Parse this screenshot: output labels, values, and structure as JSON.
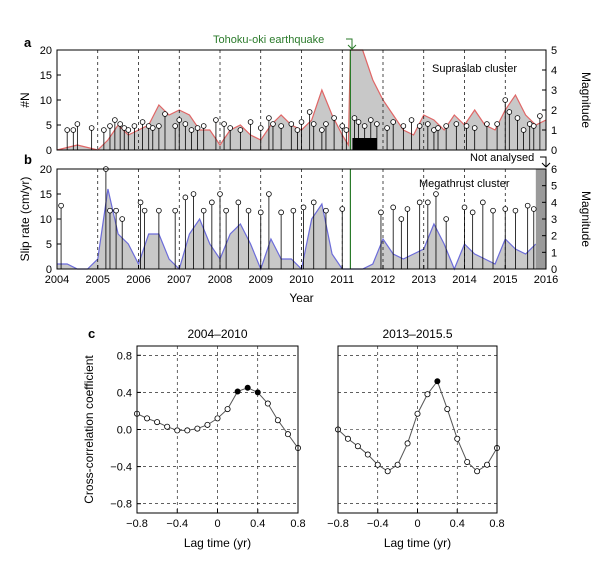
{
  "colors": {
    "supraslab_line": "#e06666",
    "megathrust_line": "#6c6cd9",
    "fill_gray": "#c8c8c8",
    "earthquake_line": "#2a7a2a",
    "earthquake_text": "#2a7a2a"
  },
  "panels": {
    "a": {
      "label": "a",
      "cluster_title": "Supraslab cluster"
    },
    "b": {
      "label": "b",
      "cluster_title": "Megathrust cluster"
    },
    "c": {
      "label": "c"
    }
  },
  "annotations": {
    "earthquake": "Tohoku-oki earthquake",
    "not_analysed": "Not analysed"
  },
  "chart_data": [
    {
      "id": "supraslab",
      "type": "area",
      "ylabel_left": "#N",
      "ylabel_right": "Magnitude",
      "xlabel": "",
      "xlim": [
        2004,
        2016
      ],
      "ylim": [
        0,
        20
      ],
      "y2lim": [
        0,
        5
      ],
      "yticks": [
        "0",
        "5",
        "10",
        "15",
        "20"
      ],
      "y2ticks": [
        "0",
        "1",
        "2",
        "3",
        "4",
        "5"
      ],
      "grid": "vertical dashed lines at each year",
      "earthquake_year": 2011.2,
      "count_x": [
        2004.0,
        2004.25,
        2004.5,
        2004.75,
        2005.0,
        2005.25,
        2005.5,
        2005.75,
        2006.0,
        2006.25,
        2006.5,
        2006.75,
        2007.0,
        2007.25,
        2007.5,
        2007.75,
        2008.0,
        2008.25,
        2008.5,
        2008.75,
        2009.0,
        2009.25,
        2009.5,
        2009.75,
        2010.0,
        2010.25,
        2010.5,
        2010.75,
        2011.0,
        2011.15,
        2011.2,
        2011.25,
        2011.5,
        2011.75,
        2012.0,
        2012.25,
        2012.5,
        2012.75,
        2013.0,
        2013.25,
        2013.5,
        2013.75,
        2014.0,
        2014.25,
        2014.5,
        2014.75,
        2015.0,
        2015.25,
        2015.5,
        2015.75,
        2016.0
      ],
      "count_y": [
        0,
        0.5,
        1,
        0.5,
        0,
        2,
        5,
        3,
        4,
        5,
        9,
        7,
        8,
        7,
        4,
        4,
        1,
        4,
        5,
        3,
        2,
        5,
        7,
        5,
        4,
        6,
        12,
        7,
        3,
        1,
        20,
        20,
        20,
        14,
        10,
        7,
        4,
        3,
        7,
        6,
        4,
        7,
        5,
        8,
        5,
        4,
        8,
        11,
        7,
        5,
        6
      ],
      "events": [
        [
          2004.25,
          1.0
        ],
        [
          2004.4,
          1.0
        ],
        [
          2004.5,
          1.3
        ],
        [
          2004.85,
          1.1
        ],
        [
          2005.15,
          1.0
        ],
        [
          2005.3,
          1.2
        ],
        [
          2005.42,
          1.5
        ],
        [
          2005.55,
          1.3
        ],
        [
          2005.65,
          1.1
        ],
        [
          2005.75,
          1.0
        ],
        [
          2005.9,
          1.2
        ],
        [
          2006.1,
          1.4
        ],
        [
          2006.25,
          1.2
        ],
        [
          2006.35,
          1.1
        ],
        [
          2006.5,
          1.2
        ],
        [
          2006.65,
          1.8
        ],
        [
          2006.9,
          1.2
        ],
        [
          2007.0,
          1.5
        ],
        [
          2007.15,
          1.3
        ],
        [
          2007.3,
          1.0
        ],
        [
          2007.45,
          1.1
        ],
        [
          2007.6,
          1.2
        ],
        [
          2007.9,
          1.5
        ],
        [
          2008.1,
          1.3
        ],
        [
          2008.25,
          1.1
        ],
        [
          2008.5,
          1.0
        ],
        [
          2008.75,
          1.4
        ],
        [
          2009.0,
          1.1
        ],
        [
          2009.2,
          1.6
        ],
        [
          2009.3,
          1.3
        ],
        [
          2009.5,
          1.2
        ],
        [
          2009.75,
          1.3
        ],
        [
          2009.9,
          1.0
        ],
        [
          2010.0,
          1.4
        ],
        [
          2010.2,
          1.9
        ],
        [
          2010.3,
          1.3
        ],
        [
          2010.5,
          1.0
        ],
        [
          2010.6,
          1.3
        ],
        [
          2010.8,
          1.6
        ],
        [
          2011.0,
          1.2
        ],
        [
          2011.1,
          1.0
        ],
        [
          2011.3,
          1.6
        ],
        [
          2011.4,
          1.4
        ],
        [
          2011.55,
          1.2
        ],
        [
          2011.7,
          1.5
        ],
        [
          2011.85,
          1.3
        ],
        [
          2012.1,
          1.1
        ],
        [
          2012.25,
          1.4
        ],
        [
          2012.5,
          1.2
        ],
        [
          2012.7,
          1.5
        ],
        [
          2012.9,
          1.2
        ],
        [
          2013.1,
          1.3
        ],
        [
          2013.25,
          1.0
        ],
        [
          2013.35,
          1.1
        ],
        [
          2013.55,
          1.2
        ],
        [
          2013.8,
          1.3
        ],
        [
          2014.05,
          1.2
        ],
        [
          2014.25,
          1.1
        ],
        [
          2014.55,
          1.3
        ],
        [
          2014.8,
          1.3
        ],
        [
          2015.0,
          2.5
        ],
        [
          2015.1,
          1.9
        ],
        [
          2015.3,
          1.6
        ],
        [
          2015.45,
          1.0
        ],
        [
          2015.6,
          1.3
        ],
        [
          2015.7,
          1.2
        ],
        [
          2015.85,
          1.7
        ]
      ]
    },
    {
      "id": "megathrust",
      "type": "area",
      "ylabel_left": "Slip rate (cm/yr)",
      "ylabel_right": "Magnitude",
      "xlabel": "Year",
      "xlim": [
        2004,
        2016
      ],
      "ylim": [
        0,
        20
      ],
      "y2lim": [
        0,
        6
      ],
      "yticks": [
        "0",
        "5",
        "10",
        "15",
        "20"
      ],
      "y2ticks": [
        "0",
        "1",
        "2",
        "3",
        "4",
        "5",
        "6"
      ],
      "xticks": [
        "2004",
        "2005",
        "2006",
        "2007",
        "2008",
        "2009",
        "2010",
        "2011",
        "2012",
        "2013",
        "2014",
        "2015",
        "2016"
      ],
      "not_analysed_range": [
        2015.75,
        2016
      ],
      "earthquake_year": 2011.2,
      "slip_x": [
        2004.0,
        2004.25,
        2004.5,
        2004.75,
        2005.0,
        2005.25,
        2005.5,
        2005.75,
        2006.0,
        2006.25,
        2006.5,
        2006.75,
        2007.0,
        2007.25,
        2007.5,
        2007.75,
        2008.0,
        2008.25,
        2008.5,
        2008.75,
        2009.0,
        2009.25,
        2009.5,
        2009.75,
        2010.0,
        2010.25,
        2010.5,
        2010.75,
        2011.0,
        2011.1,
        2011.2
      ],
      "slip_y": [
        1,
        1,
        0,
        0,
        2,
        16,
        7,
        5,
        1,
        7,
        7,
        2,
        0,
        7,
        10,
        5,
        2,
        7,
        9,
        5,
        0,
        6,
        2,
        2,
        0,
        10,
        13,
        3,
        0,
        0,
        0
      ],
      "slip_x2": [
        2011.2,
        2011.5,
        2011.75,
        2012.0,
        2012.25,
        2012.5,
        2012.75,
        2013.0,
        2013.25,
        2013.5,
        2013.75,
        2014.0,
        2014.25,
        2014.5,
        2014.75,
        2015.0,
        2015.25,
        2015.5,
        2015.75
      ],
      "slip_y2": [
        0,
        0,
        1,
        6,
        3,
        2,
        3,
        4,
        9,
        5,
        0,
        5,
        3,
        2,
        1,
        6,
        4,
        3,
        5
      ],
      "events": [
        [
          2004.1,
          3.8
        ],
        [
          2005.2,
          6.0
        ],
        [
          2005.3,
          3.5
        ],
        [
          2005.45,
          3.5
        ],
        [
          2005.6,
          3.0
        ],
        [
          2006.05,
          4.0
        ],
        [
          2006.15,
          3.5
        ],
        [
          2006.5,
          3.5
        ],
        [
          2006.9,
          3.5
        ],
        [
          2007.15,
          4.3
        ],
        [
          2007.35,
          4.5
        ],
        [
          2007.6,
          3.5
        ],
        [
          2007.8,
          4.0
        ],
        [
          2008.0,
          4.5
        ],
        [
          2008.15,
          3.5
        ],
        [
          2008.45,
          4.0
        ],
        [
          2008.7,
          3.5
        ],
        [
          2009.0,
          3.4
        ],
        [
          2009.2,
          4.5
        ],
        [
          2009.5,
          3.4
        ],
        [
          2009.8,
          3.5
        ],
        [
          2010.05,
          3.7
        ],
        [
          2010.3,
          4.0
        ],
        [
          2010.6,
          3.5
        ],
        [
          2011.0,
          3.6
        ],
        [
          2011.95,
          3.4
        ],
        [
          2012.25,
          3.7
        ],
        [
          2012.45,
          3.0
        ],
        [
          2012.6,
          3.6
        ],
        [
          2012.9,
          4.0
        ],
        [
          2013.1,
          4.0
        ],
        [
          2013.3,
          4.5
        ],
        [
          2013.55,
          3.0
        ],
        [
          2014.0,
          3.7
        ],
        [
          2014.2,
          3.4
        ],
        [
          2014.45,
          4.0
        ],
        [
          2014.7,
          3.5
        ],
        [
          2015.0,
          3.6
        ],
        [
          2015.25,
          3.5
        ],
        [
          2015.55,
          3.8
        ],
        [
          2015.7,
          3.6
        ]
      ]
    },
    {
      "id": "xcorr-2004-2010",
      "type": "line",
      "title": "2004–2010",
      "xlabel": "Lag time (yr)",
      "ylabel": "Cross-correlation coefficient",
      "xlim": [
        -0.8,
        0.8
      ],
      "ylim": [
        -0.9,
        0.9
      ],
      "xticks": [
        "−0.8",
        "−0.4",
        "0",
        "0.4",
        "0.8"
      ],
      "yticks": [
        "0.8",
        "0.4",
        "0.0",
        "−0.4",
        "−0.8"
      ],
      "grid": true,
      "x": [
        -0.8,
        -0.7,
        -0.6,
        -0.5,
        -0.4,
        -0.3,
        -0.2,
        -0.1,
        0.0,
        0.1,
        0.2,
        0.3,
        0.4,
        0.5,
        0.6,
        0.7,
        0.8
      ],
      "y": [
        0.17,
        0.12,
        0.08,
        0.03,
        -0.01,
        -0.01,
        0.01,
        0.05,
        0.12,
        0.22,
        0.41,
        0.45,
        0.4,
        0.28,
        0.1,
        -0.05,
        -0.2
      ],
      "highlighted": [
        10,
        11,
        12
      ]
    },
    {
      "id": "xcorr-2013-2015",
      "type": "line",
      "title": "2013–2015.5",
      "xlabel": "Lag time (yr)",
      "ylabel": "",
      "xlim": [
        -0.8,
        0.8
      ],
      "ylim": [
        -0.9,
        0.9
      ],
      "xticks": [
        "−0.8",
        "−0.4",
        "0",
        "0.4",
        "0.8"
      ],
      "grid": true,
      "x": [
        -0.8,
        -0.7,
        -0.6,
        -0.5,
        -0.4,
        -0.3,
        -0.2,
        -0.1,
        0.0,
        0.1,
        0.2,
        0.3,
        0.4,
        0.5,
        0.6,
        0.7,
        0.8
      ],
      "y": [
        0.0,
        -0.1,
        -0.18,
        -0.27,
        -0.38,
        -0.45,
        -0.38,
        -0.15,
        0.17,
        0.38,
        0.52,
        0.22,
        -0.1,
        -0.35,
        -0.45,
        -0.38,
        -0.2
      ],
      "highlighted": [
        10
      ]
    }
  ]
}
